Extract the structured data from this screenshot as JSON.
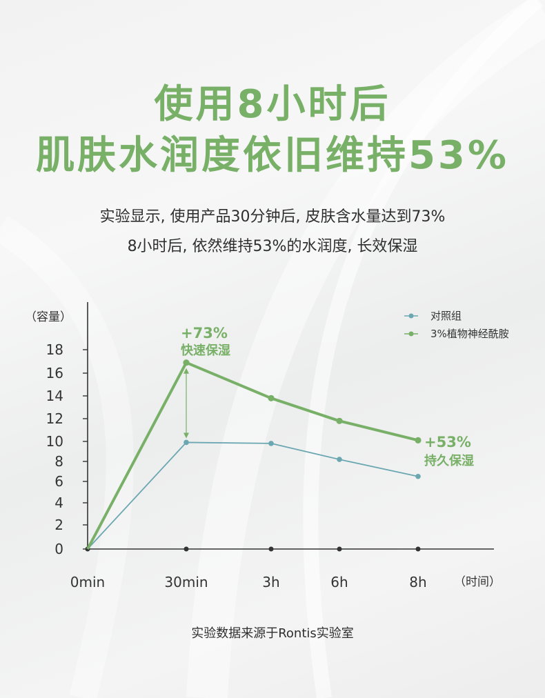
{
  "headline": {
    "line1": "使用8小时后",
    "line2": "肌肤水润度依旧维持53%"
  },
  "subtitle": {
    "line1": "实验显示, 使用产品30分钟后, 皮肤含水量达到73%",
    "line2": "8小时后, 依然维持53%的水润度, 长效保湿"
  },
  "footer": "实验数据来源于Rontis实验室",
  "colors": {
    "accent": "#78b068",
    "control": "#6aa7b1",
    "text": "#2e2e2e",
    "axis": "#333333"
  },
  "chart_data": {
    "type": "line",
    "ylabel": "（容量）",
    "xlabel": "（时间）",
    "categories": [
      "0min",
      "30min",
      "3h",
      "6h",
      "8h"
    ],
    "yticks": [
      0,
      2,
      4,
      6,
      8,
      10,
      12,
      14,
      16,
      18
    ],
    "legend_position": "top-right",
    "grid": false,
    "series": [
      {
        "name": "对照组",
        "color": "#6aa7b1",
        "values": [
          0,
          9.9,
          9.8,
          8.2,
          6.5
        ]
      },
      {
        "name": "3%植物神经酰胺",
        "color": "#78b068",
        "values": [
          0,
          16.9,
          13.8,
          11.8,
          10.1
        ]
      }
    ],
    "annotations": [
      {
        "title": "+73%",
        "subtitle": "快速保湿",
        "category": "30min"
      },
      {
        "title": "+53%",
        "subtitle": "持久保湿",
        "category": "8h"
      }
    ]
  }
}
